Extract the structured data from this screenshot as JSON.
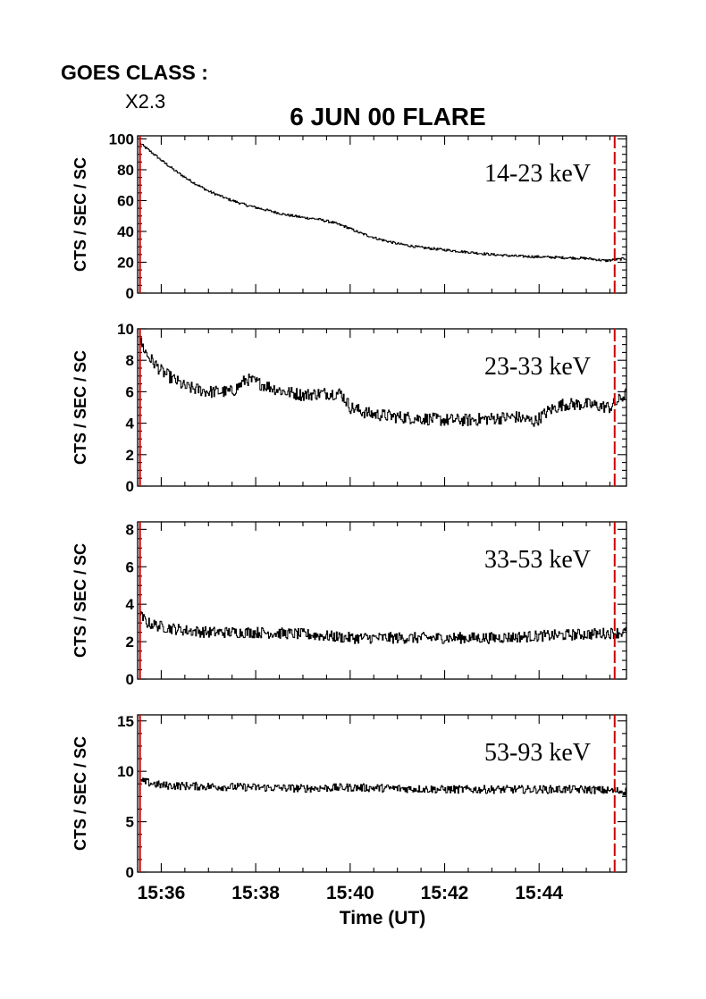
{
  "header": {
    "goes_label": "GOES CLASS :",
    "goes_value": "X2.3"
  },
  "chart_data": {
    "type": "line",
    "title": "6 JUN 00 FLARE",
    "xlabel": "Time (UT)",
    "ylabel": "CTS / SEC / SC",
    "x_units": "minutes after 15:00 UT",
    "xlim": [
      35.5,
      45.85
    ],
    "x_ticks": [
      {
        "value": 36,
        "label": "15:36"
      },
      {
        "value": 38,
        "label": "15:38"
      },
      {
        "value": 40,
        "label": "15:40"
      },
      {
        "value": 42,
        "label": "15:42"
      },
      {
        "value": 44,
        "label": "15:44"
      }
    ],
    "interval_markers": [
      35.55,
      45.6
    ],
    "marker_color": "#cc0000",
    "line_color": "#000000",
    "panels": [
      {
        "band": "14-23 keV",
        "ylim": [
          0,
          102
        ],
        "yticks": [
          0,
          20,
          40,
          60,
          80,
          100
        ],
        "noise": 0.8,
        "x": [
          35.55,
          35.8,
          36.0,
          36.3,
          36.6,
          37.0,
          37.4,
          37.8,
          38.2,
          38.6,
          39.0,
          39.3,
          39.6,
          39.9,
          40.2,
          40.6,
          41.0,
          41.5,
          42.0,
          42.5,
          43.0,
          43.5,
          44.0,
          44.5,
          45.0,
          45.4,
          45.85
        ],
        "values": [
          97,
          91,
          86,
          79,
          73,
          66,
          61,
          57,
          54,
          51,
          49,
          48,
          46,
          43,
          39,
          35,
          32,
          29.5,
          28,
          26.5,
          25,
          24,
          23.5,
          23,
          22.5,
          21,
          22.5
        ]
      },
      {
        "band": "23-33 keV",
        "ylim": [
          0,
          10
        ],
        "yticks": [
          0,
          2,
          4,
          6,
          8,
          10
        ],
        "noise": 0.4,
        "x": [
          35.55,
          35.7,
          36.0,
          36.5,
          37.0,
          37.5,
          37.8,
          38.2,
          38.6,
          39.0,
          39.4,
          39.8,
          40.0,
          40.4,
          41.0,
          41.5,
          42.0,
          42.5,
          43.0,
          43.5,
          43.9,
          44.2,
          44.5,
          45.0,
          45.5,
          45.85
        ],
        "values": [
          9.2,
          8.3,
          7.3,
          6.3,
          6.0,
          6.0,
          6.8,
          6.4,
          6.0,
          5.8,
          5.9,
          5.9,
          5.0,
          4.6,
          4.4,
          4.3,
          4.2,
          4.2,
          4.3,
          4.4,
          4.1,
          4.8,
          5.2,
          5.2,
          5.0,
          5.9
        ]
      },
      {
        "band": "33-53 keV",
        "ylim": [
          0,
          8.4
        ],
        "yticks": [
          0,
          2,
          4,
          6,
          8
        ],
        "noise": 0.3,
        "x": [
          35.55,
          35.7,
          36.0,
          36.5,
          37.0,
          38.0,
          39.0,
          40.0,
          41.0,
          42.0,
          43.0,
          44.0,
          45.0,
          45.85
        ],
        "values": [
          3.4,
          3.0,
          2.8,
          2.6,
          2.5,
          2.5,
          2.4,
          2.2,
          2.2,
          2.2,
          2.2,
          2.3,
          2.4,
          2.5
        ]
      },
      {
        "band": "53-93 keV",
        "ylim": [
          0,
          15.6
        ],
        "yticks": [
          0,
          5,
          10,
          15
        ],
        "noise": 0.4,
        "x": [
          35.55,
          35.7,
          36.0,
          37.0,
          38.0,
          39.0,
          40.0,
          41.0,
          42.0,
          43.0,
          44.0,
          45.0,
          45.85
        ],
        "values": [
          9.0,
          8.9,
          8.6,
          8.5,
          8.4,
          8.3,
          8.4,
          8.3,
          8.2,
          8.2,
          8.2,
          8.2,
          8.0
        ]
      }
    ]
  }
}
